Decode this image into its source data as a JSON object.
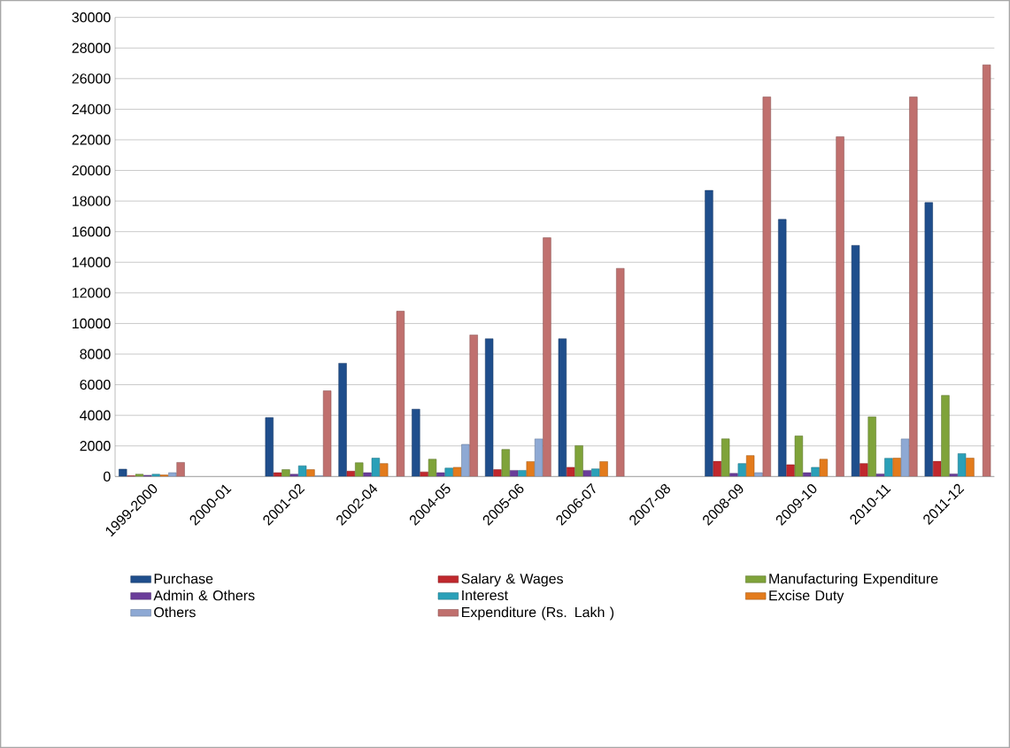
{
  "chart_data": {
    "type": "bar",
    "categories": [
      "1999-2000",
      "2000-01",
      "2001-02",
      "2002-04",
      "2004-05",
      "2005-06",
      "2006-07",
      "2007-08",
      "2008-09",
      "2009-10",
      "2010-11",
      "2011-12"
    ],
    "series": [
      {
        "name": "Purchase",
        "color": "#1f4e8c",
        "values": [
          480,
          null,
          3850,
          7400,
          4400,
          9000,
          9000,
          null,
          18700,
          16800,
          15100,
          17900
        ]
      },
      {
        "name": "Salary & Wages",
        "color": "#c0282d",
        "values": [
          50,
          null,
          250,
          350,
          300,
          450,
          600,
          null,
          1000,
          770,
          850,
          1000
        ]
      },
      {
        "name": "Manufacturing Expenditure",
        "color": "#7fa33a",
        "values": [
          150,
          null,
          450,
          900,
          1130,
          1770,
          2020,
          null,
          2460,
          2650,
          3900,
          5300
        ]
      },
      {
        "name": "Admin & Others",
        "color": "#6a3d9a",
        "values": [
          80,
          null,
          150,
          250,
          250,
          400,
          400,
          null,
          200,
          250,
          170,
          170
        ]
      },
      {
        "name": "Interest",
        "color": "#2aa0b8",
        "values": [
          150,
          null,
          700,
          1200,
          550,
          400,
          500,
          null,
          850,
          600,
          1190,
          1500
        ]
      },
      {
        "name": "Excise Duty",
        "color": "#e37b1c",
        "values": [
          100,
          null,
          450,
          850,
          600,
          980,
          980,
          null,
          1370,
          1130,
          1200,
          1200
        ]
      },
      {
        "name": "Others",
        "color": "#8ea9d4",
        "values": [
          250,
          null,
          50,
          null,
          2100,
          2460,
          null,
          null,
          250,
          null,
          2460,
          null
        ]
      },
      {
        "name": "Expenditure (Rs. Lakh )",
        "color": "#c0706e",
        "values": [
          920,
          null,
          5600,
          10800,
          9250,
          15600,
          13600,
          null,
          24800,
          22200,
          24800,
          26900
        ]
      }
    ],
    "ylim": [
      0,
      30000
    ],
    "yticks": [
      0,
      2000,
      4000,
      6000,
      8000,
      10000,
      12000,
      14000,
      16000,
      18000,
      20000,
      22000,
      24000,
      26000,
      28000,
      30000
    ],
    "grid": "y",
    "legend": "bottom"
  }
}
